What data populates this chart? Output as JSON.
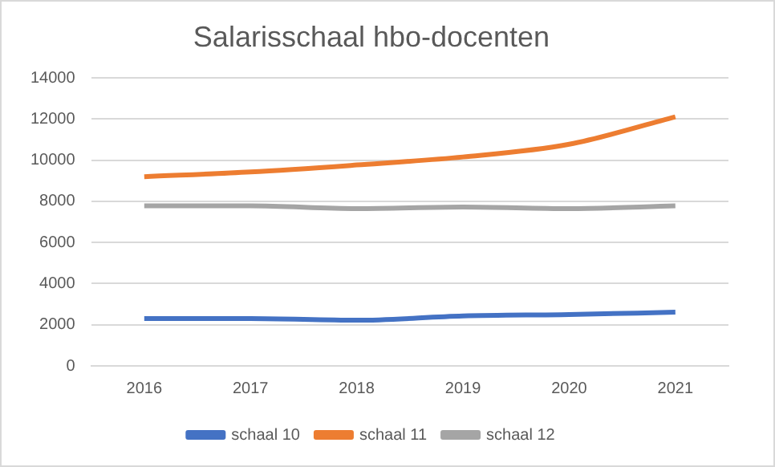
{
  "chart_data": {
    "type": "line",
    "title": "Salarisschaal hbo-docenten",
    "categories": [
      "2016",
      "2017",
      "2018",
      "2019",
      "2020",
      "2021"
    ],
    "series": [
      {
        "name": "schaal 10",
        "color": "#4472c4",
        "values": [
          2300,
          2300,
          2220,
          2430,
          2500,
          2610
        ]
      },
      {
        "name": "schaal 11",
        "color": "#ed7d31",
        "values": [
          9200,
          9430,
          9770,
          10160,
          10780,
          12110
        ]
      },
      {
        "name": "schaal 12",
        "color": "#a5a5a5",
        "values": [
          7780,
          7780,
          7650,
          7730,
          7650,
          7780
        ]
      }
    ],
    "ylim": [
      0,
      14000
    ],
    "yticks": [
      0,
      2000,
      4000,
      6000,
      8000,
      10000,
      12000,
      14000
    ],
    "grid": "y",
    "legend": "bottom",
    "marker": "none",
    "line_style": "solid"
  }
}
